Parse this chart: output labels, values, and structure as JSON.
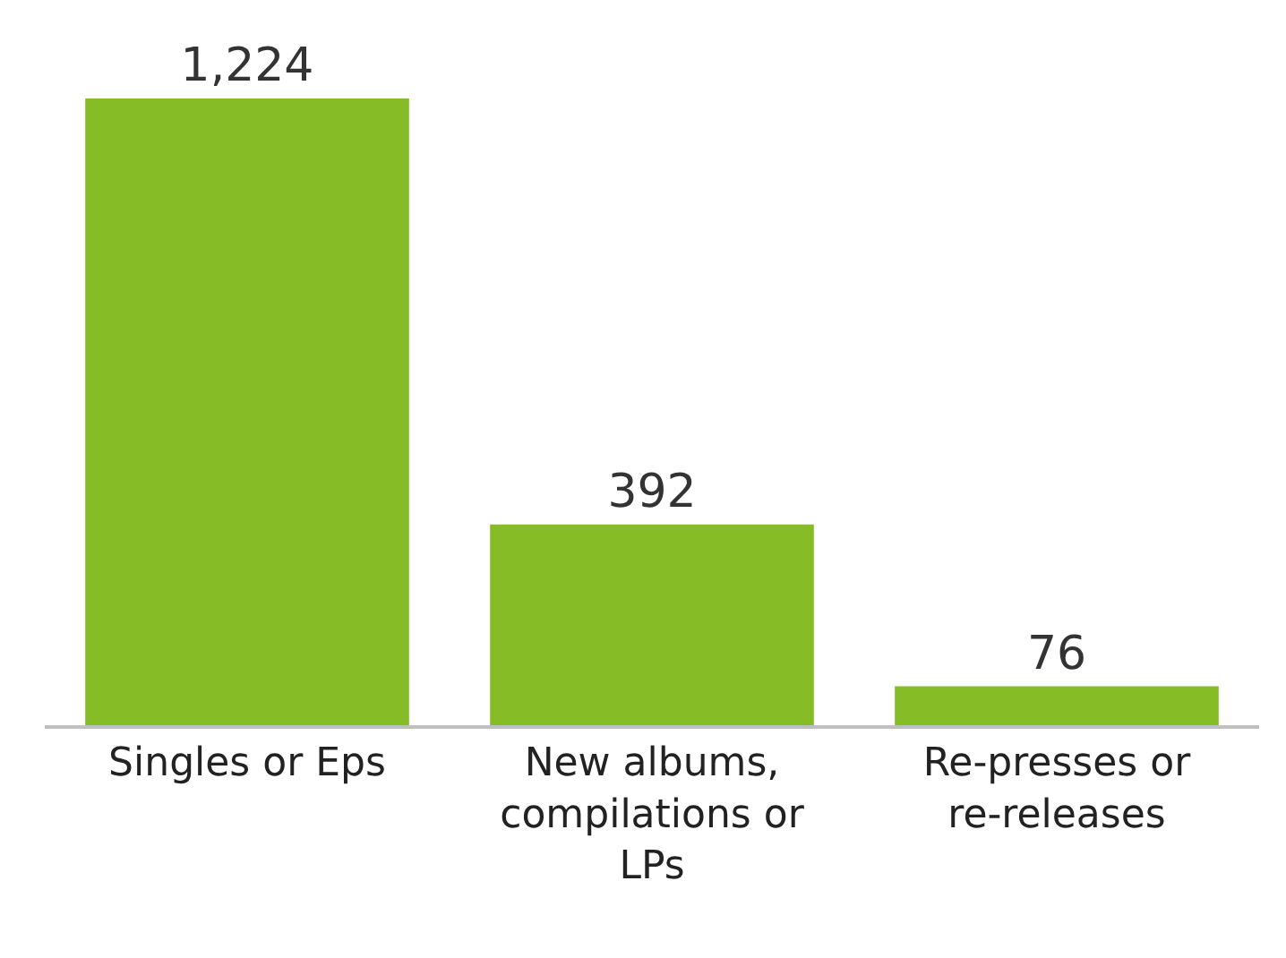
{
  "chart_data": {
    "type": "bar",
    "categories": [
      "Singles or Eps",
      "New albums, compilations or LPs",
      "Re-presses or re-releases"
    ],
    "values": [
      1224,
      392,
      76
    ],
    "value_labels": [
      "1,224",
      "392",
      "76"
    ],
    "color": "#86bc25"
  }
}
